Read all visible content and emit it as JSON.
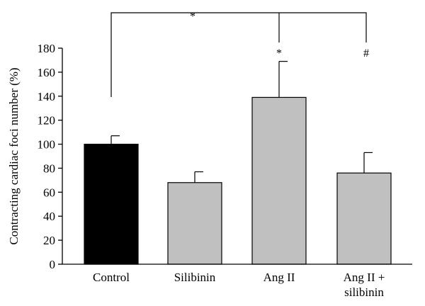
{
  "chart_data": {
    "type": "bar",
    "ylabel": "Contracting cardiac foci number (%)",
    "ylim": [
      0,
      180
    ],
    "yticks": [
      "0",
      "20",
      "40",
      "60",
      "80",
      "100",
      "120",
      "140",
      "160",
      "180"
    ],
    "categories": [
      "Control",
      "Silibinin",
      "Ang II",
      "Ang II +\nsilibinin"
    ],
    "values": [
      100,
      68,
      139,
      76
    ],
    "errors": [
      7,
      9,
      30,
      17
    ],
    "bar_colors": [
      "#000000",
      "#c0c0c0",
      "#c0c0c0",
      "#c0c0c0"
    ],
    "grid": false,
    "annotations": {
      "bracket_star": "*",
      "angii_star": "*",
      "combo_hash": "#"
    }
  }
}
